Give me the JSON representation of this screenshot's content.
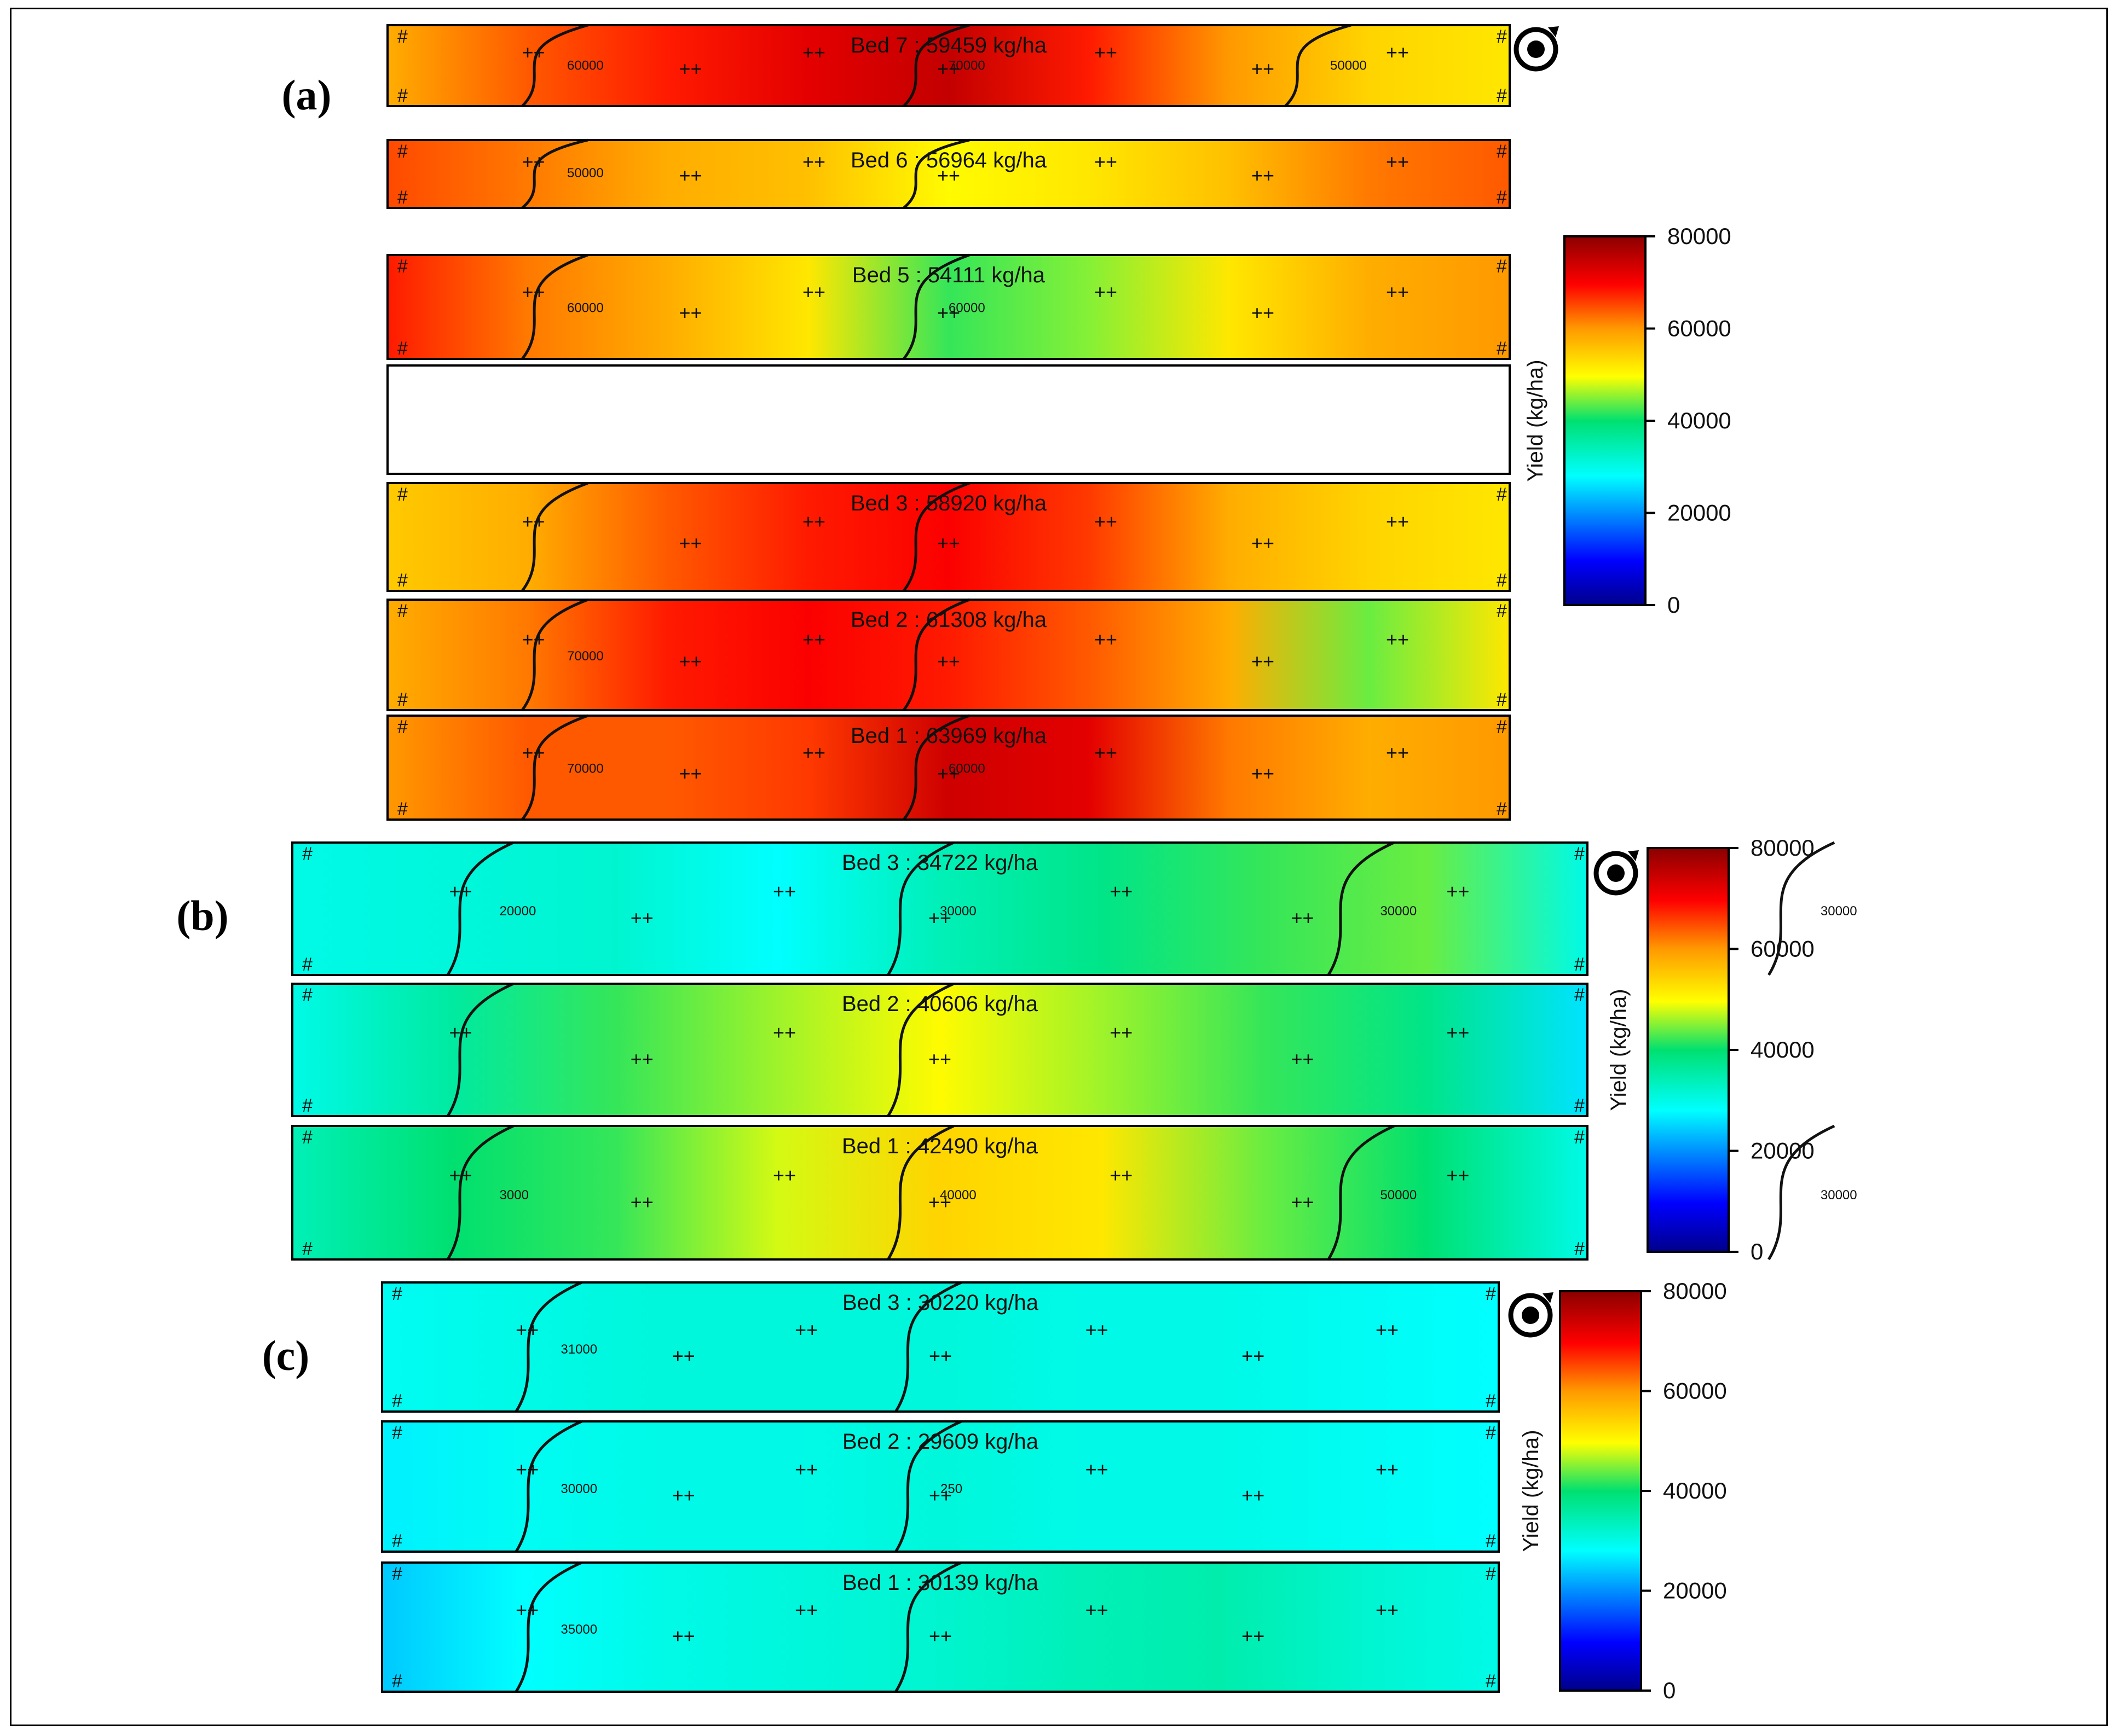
{
  "colorbar": {
    "label": "Yield (kg/ha)",
    "ticks": [
      "80000",
      "60000",
      "40000",
      "20000",
      "0"
    ]
  },
  "chart_data": [
    {
      "type": "heatmap",
      "panel": "(a)",
      "beds": [
        {
          "label": "Bed 7 : 59459 kg/ha",
          "mean": 59459,
          "profile": [
            58000,
            64000,
            68000,
            72000,
            75000,
            68000,
            60000,
            54000,
            52000
          ],
          "contours": [
            "60000",
            "70000",
            "50000"
          ]
        },
        {
          "label": "Bed 6 : 56964 kg/ha",
          "mean": 56964,
          "profile": [
            65000,
            62000,
            58000,
            56000,
            50000,
            52000,
            56000,
            62000,
            64000
          ],
          "contours": [
            "50000"
          ]
        },
        {
          "label": "Bed 5 : 54111 kg/ha",
          "mean": 54111,
          "profile": [
            68000,
            62000,
            58000,
            52000,
            42000,
            45000,
            52000,
            58000,
            60000
          ],
          "contours": [
            "60000",
            "60000"
          ]
        },
        null,
        {
          "label": "Bed 3 : 58920 kg/ha",
          "mean": 58920,
          "profile": [
            55000,
            58000,
            64000,
            68000,
            70000,
            66000,
            58000,
            54000,
            52000
          ],
          "contours": []
        },
        {
          "label": "Bed 2 : 61308 kg/ha",
          "mean": 61308,
          "profile": [
            58000,
            62000,
            68000,
            70000,
            68000,
            64000,
            58000,
            44000,
            52000
          ],
          "contours": [
            "70000"
          ]
        },
        {
          "label": "Bed 1 : 63969 kg/ha",
          "mean": 63969,
          "profile": [
            60000,
            64000,
            64000,
            66000,
            74000,
            72000,
            62000,
            58000,
            60000
          ],
          "contours": [
            "70000",
            "60000"
          ]
        }
      ],
      "scale": {
        "min": 0,
        "max": 80000
      }
    },
    {
      "type": "heatmap",
      "panel": "(b)",
      "beds": [
        {
          "label": "Bed 3 : 34722 kg/ha",
          "mean": 34722,
          "profile": [
            30000,
            31000,
            32000,
            28000,
            34000,
            38000,
            42000,
            44000,
            30000
          ],
          "contours": [
            "20000",
            "30000",
            "30000",
            "30000"
          ]
        },
        {
          "label": "Bed 2 : 40606 kg/ha",
          "mean": 40606,
          "profile": [
            30000,
            36000,
            42000,
            46000,
            50000,
            46000,
            42000,
            38000,
            26000
          ],
          "contours": []
        },
        {
          "label": "Bed 1 : 42490 kg/ha",
          "mean": 42490,
          "profile": [
            34000,
            40000,
            42000,
            48000,
            54000,
            52000,
            44000,
            40000,
            30000
          ],
          "contours": [
            "3000",
            "40000",
            "50000",
            "30000"
          ]
        }
      ],
      "scale": {
        "min": 0,
        "max": 80000
      }
    },
    {
      "type": "heatmap",
      "panel": "(c)",
      "beds": [
        {
          "label": "Bed 3 : 30220 kg/ha",
          "mean": 30220,
          "profile": [
            29000,
            30000,
            31000,
            31000,
            31000,
            30000,
            30000,
            29000,
            28000
          ],
          "contours": [
            "31000"
          ]
        },
        {
          "label": "Bed 2 : 29609 kg/ha",
          "mean": 29609,
          "profile": [
            27000,
            29000,
            30000,
            30000,
            31000,
            30000,
            30000,
            29000,
            28000
          ],
          "contours": [
            "30000",
            "250"
          ]
        },
        {
          "label": "Bed 1 : 30139 kg/ha",
          "mean": 30139,
          "profile": [
            24000,
            28000,
            30000,
            31000,
            32000,
            34000,
            35000,
            32000,
            30000
          ],
          "contours": [
            "35000"
          ]
        }
      ],
      "scale": {
        "min": 0,
        "max": 80000
      }
    }
  ]
}
